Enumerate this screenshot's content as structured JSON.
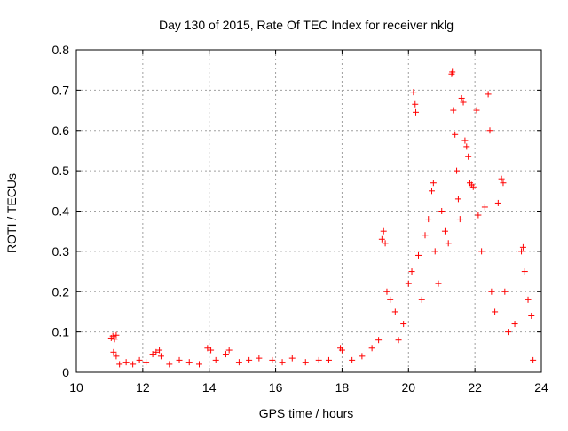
{
  "chart_data": {
    "type": "scatter",
    "title": "Day 130 of 2015, Rate Of TEC Index for receiver nklg",
    "xlabel": "GPS time / hours",
    "ylabel": "ROTI / TECUs",
    "xlim": [
      10,
      24
    ],
    "ylim": [
      0,
      0.8
    ],
    "x_ticks": [
      "10",
      "12",
      "14",
      "16",
      "18",
      "20",
      "22",
      "24"
    ],
    "y_ticks": [
      "0",
      "0.1",
      "0.2",
      "0.3",
      "0.4",
      "0.5",
      "0.6",
      "0.7",
      "0.8"
    ],
    "grid": true,
    "marker": "+",
    "series_color": "#ff0000",
    "series": [
      {
        "values": [
          [
            11.05,
            0.085
          ],
          [
            11.1,
            0.09
          ],
          [
            11.15,
            0.082
          ],
          [
            11.2,
            0.092
          ],
          [
            11.12,
            0.05
          ],
          [
            11.2,
            0.04
          ],
          [
            11.3,
            0.02
          ],
          [
            11.5,
            0.025
          ],
          [
            11.7,
            0.02
          ],
          [
            11.9,
            0.03
          ],
          [
            12.1,
            0.025
          ],
          [
            12.3,
            0.045
          ],
          [
            12.4,
            0.05
          ],
          [
            12.5,
            0.055
          ],
          [
            12.55,
            0.04
          ],
          [
            12.8,
            0.02
          ],
          [
            13.1,
            0.03
          ],
          [
            13.4,
            0.025
          ],
          [
            13.7,
            0.02
          ],
          [
            13.95,
            0.06
          ],
          [
            14.05,
            0.055
          ],
          [
            14.2,
            0.03
          ],
          [
            14.5,
            0.045
          ],
          [
            14.6,
            0.055
          ],
          [
            14.9,
            0.025
          ],
          [
            15.2,
            0.03
          ],
          [
            15.5,
            0.035
          ],
          [
            15.9,
            0.03
          ],
          [
            16.2,
            0.025
          ],
          [
            16.5,
            0.035
          ],
          [
            16.9,
            0.025
          ],
          [
            17.3,
            0.03
          ],
          [
            17.6,
            0.03
          ],
          [
            17.95,
            0.06
          ],
          [
            18.0,
            0.055
          ],
          [
            18.3,
            0.03
          ],
          [
            18.6,
            0.04
          ],
          [
            18.9,
            0.06
          ],
          [
            19.1,
            0.08
          ],
          [
            19.2,
            0.33
          ],
          [
            19.25,
            0.35
          ],
          [
            19.3,
            0.32
          ],
          [
            19.35,
            0.2
          ],
          [
            19.45,
            0.18
          ],
          [
            19.6,
            0.15
          ],
          [
            19.7,
            0.08
          ],
          [
            19.85,
            0.12
          ],
          [
            20.0,
            0.22
          ],
          [
            20.1,
            0.25
          ],
          [
            20.15,
            0.695
          ],
          [
            20.2,
            0.665
          ],
          [
            20.22,
            0.645
          ],
          [
            20.3,
            0.29
          ],
          [
            20.4,
            0.18
          ],
          [
            20.5,
            0.34
          ],
          [
            20.6,
            0.38
          ],
          [
            20.7,
            0.45
          ],
          [
            20.75,
            0.47
          ],
          [
            20.8,
            0.3
          ],
          [
            20.9,
            0.22
          ],
          [
            21.0,
            0.4
          ],
          [
            21.1,
            0.35
          ],
          [
            21.2,
            0.32
          ],
          [
            21.3,
            0.74
          ],
          [
            21.32,
            0.745
          ],
          [
            21.35,
            0.65
          ],
          [
            21.4,
            0.59
          ],
          [
            21.45,
            0.5
          ],
          [
            21.5,
            0.43
          ],
          [
            21.55,
            0.38
          ],
          [
            21.6,
            0.68
          ],
          [
            21.65,
            0.67
          ],
          [
            21.7,
            0.575
          ],
          [
            21.75,
            0.56
          ],
          [
            21.8,
            0.535
          ],
          [
            21.85,
            0.47
          ],
          [
            21.9,
            0.465
          ],
          [
            21.95,
            0.46
          ],
          [
            22.05,
            0.65
          ],
          [
            22.1,
            0.39
          ],
          [
            22.2,
            0.3
          ],
          [
            22.3,
            0.41
          ],
          [
            22.4,
            0.69
          ],
          [
            22.45,
            0.6
          ],
          [
            22.5,
            0.2
          ],
          [
            22.6,
            0.15
          ],
          [
            22.7,
            0.42
          ],
          [
            22.8,
            0.48
          ],
          [
            22.85,
            0.47
          ],
          [
            22.9,
            0.2
          ],
          [
            23.0,
            0.1
          ],
          [
            23.2,
            0.12
          ],
          [
            23.4,
            0.3
          ],
          [
            23.45,
            0.31
          ],
          [
            23.5,
            0.25
          ],
          [
            23.6,
            0.18
          ],
          [
            23.7,
            0.14
          ],
          [
            23.75,
            0.03
          ]
        ]
      }
    ]
  }
}
